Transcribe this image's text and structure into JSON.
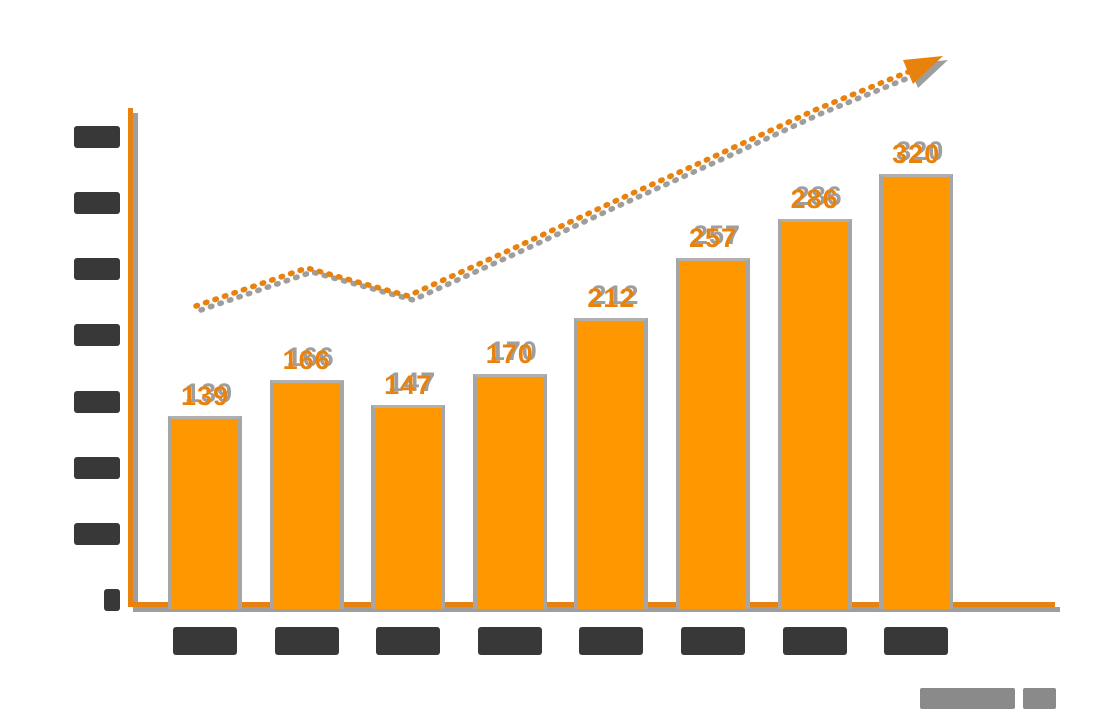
{
  "page": {
    "background_color": "#ffffff",
    "title": ""
  },
  "chart_data": {
    "type": "bar",
    "title": "",
    "categories": [
      "",
      "",
      "",
      "",
      "",
      "",
      "",
      ""
    ],
    "values": [
      139,
      166,
      147,
      170,
      212,
      257,
      286,
      320
    ],
    "bar_labels": [
      "139",
      "166",
      "147",
      "170",
      "212",
      "257",
      "286",
      "320"
    ],
    "ylim": [
      0,
      350
    ],
    "y_tick_count": 8,
    "x_tick_count": 8,
    "grid": false,
    "legend": false,
    "trend_arrow": {
      "style": "dotted-line-with-arrowhead",
      "approx_values": [
        224,
        252,
        230,
        250,
        300,
        336,
        370,
        407
      ],
      "direction": "rising-to-upper-right"
    },
    "redactions": {
      "y_tick_labels_are_solid_blocks": 8,
      "x_tick_labels_are_solid_blocks": 8,
      "source_note_blocks": 2
    },
    "colors": {
      "bar_fill": "#FF9800",
      "line_labels_axis": "#E8820C",
      "shadow_gray": "#9E9E9E",
      "redacted_text_dark": "#383838",
      "source_note_gray": "#8A8A8A"
    }
  }
}
